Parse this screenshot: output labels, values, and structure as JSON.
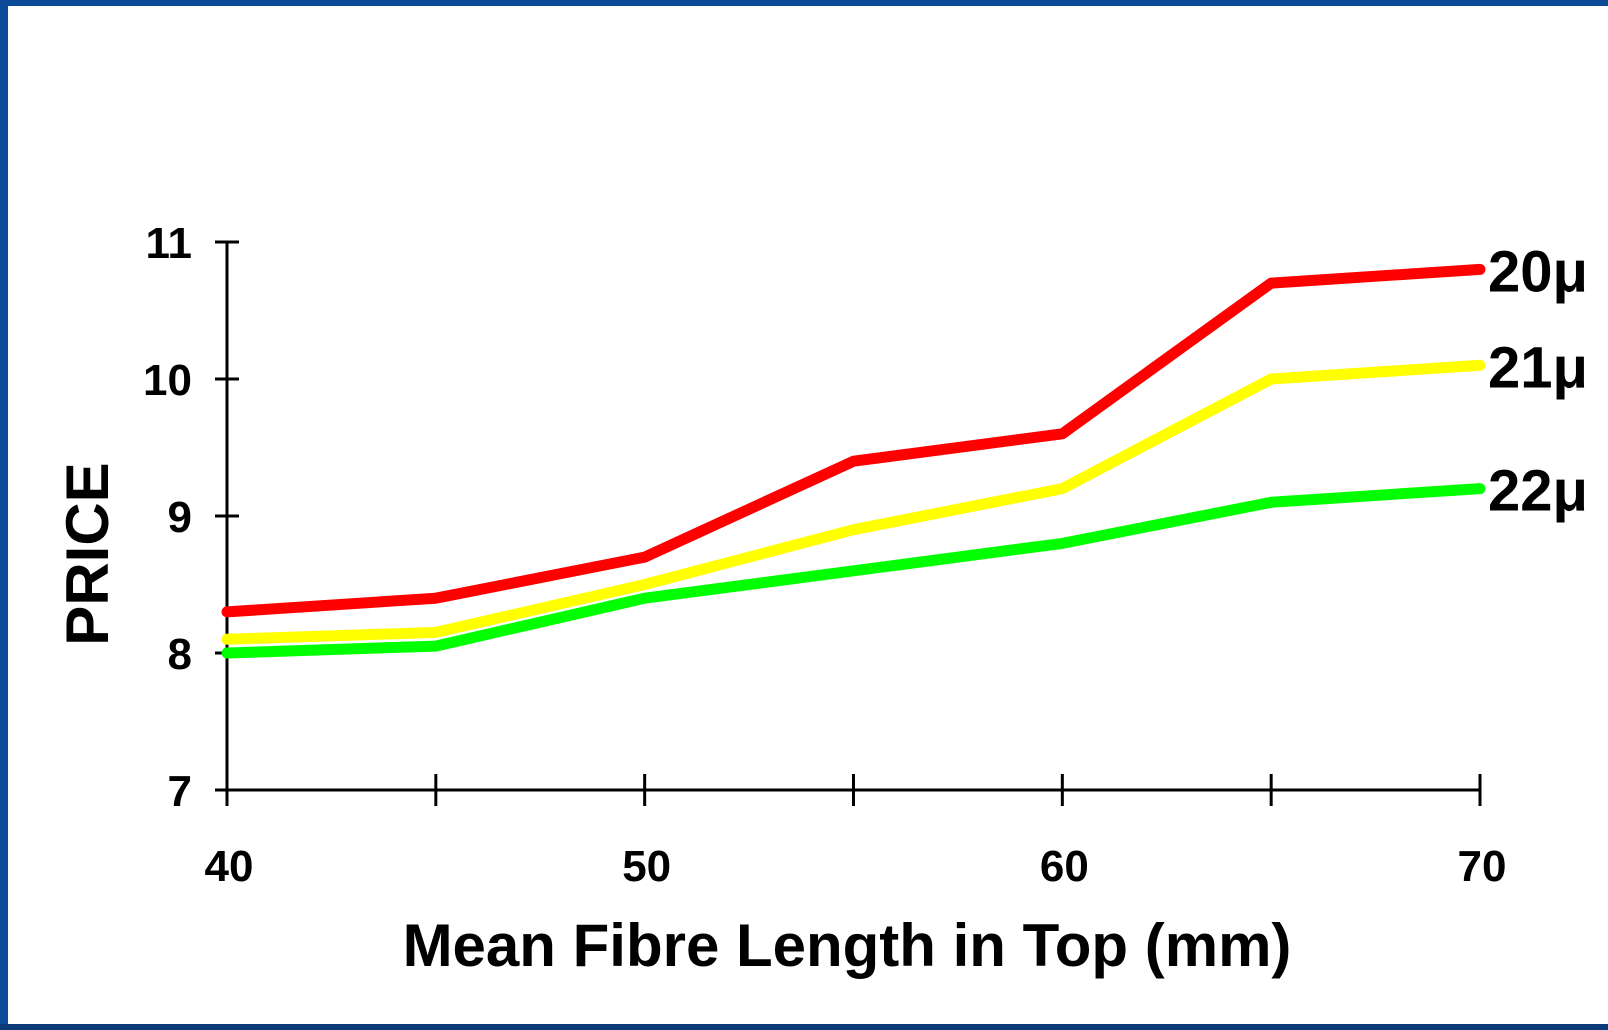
{
  "colors": {
    "frame": "#0b4a96",
    "background": "#ffffff",
    "axis": "#000000"
  },
  "chart_data": {
    "type": "line",
    "title": "",
    "xlabel": "Mean Fibre Length in Top (mm)",
    "ylabel": "PRICE",
    "x": [
      40,
      45,
      50,
      55,
      60,
      65,
      70
    ],
    "xlim": [
      40,
      70
    ],
    "ylim": [
      7,
      11
    ],
    "x_tick_labels": [
      "40",
      "50",
      "60",
      "70"
    ],
    "x_tick_label_values": [
      40,
      50,
      60,
      70
    ],
    "x_tick_marks": [
      40,
      45,
      50,
      55,
      60,
      65,
      70
    ],
    "y_tick_labels": [
      "7",
      "8",
      "9",
      "10",
      "11"
    ],
    "y_tick_values": [
      7,
      8,
      9,
      10,
      11
    ],
    "grid": false,
    "legend": "inline labels at line ends",
    "series": [
      {
        "name": "20μ",
        "color": "#ff0000",
        "values": [
          8.3,
          8.4,
          8.7,
          9.4,
          9.6,
          10.7,
          10.8
        ]
      },
      {
        "name": "21μ",
        "color": "#ffff00",
        "values": [
          8.1,
          8.15,
          8.5,
          8.9,
          9.2,
          10.0,
          10.1
        ]
      },
      {
        "name": "22μ",
        "color": "#00ff00",
        "values": [
          8.0,
          8.05,
          8.4,
          8.6,
          8.8,
          9.1,
          9.2
        ]
      }
    ]
  }
}
